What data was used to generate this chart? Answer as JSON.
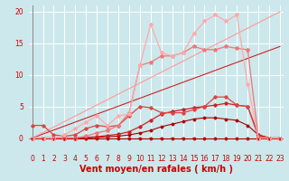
{
  "background_color": "#cce8ec",
  "grid_color": "#ffffff",
  "xlabel": "Vent moyen/en rafales ( km/h )",
  "xlabel_color": "#cc0000",
  "xlabel_fontsize": 7,
  "xticks": [
    0,
    1,
    2,
    3,
    4,
    5,
    6,
    7,
    8,
    9,
    10,
    11,
    12,
    13,
    14,
    15,
    16,
    17,
    18,
    19,
    20,
    21,
    22,
    23
  ],
  "yticks": [
    0,
    5,
    10,
    15,
    20
  ],
  "xlim": [
    -0.3,
    23.3
  ],
  "ylim": [
    -0.5,
    21
  ],
  "lines": [
    {
      "x": [
        0,
        23
      ],
      "y": [
        0,
        14.5
      ],
      "color": "#cc2222",
      "linewidth": 0.8,
      "marker": null,
      "markersize": 0
    },
    {
      "x": [
        0,
        23
      ],
      "y": [
        0,
        20
      ],
      "color": "#ff9999",
      "linewidth": 0.8,
      "marker": null,
      "markersize": 0
    },
    {
      "x": [
        0,
        1,
        2,
        3,
        4,
        5,
        6,
        7,
        8,
        9,
        10,
        11,
        12,
        13,
        14,
        15,
        16,
        17,
        18,
        19,
        20,
        21,
        22,
        23
      ],
      "y": [
        0,
        0,
        0,
        0,
        0,
        0,
        0,
        0,
        0,
        0,
        0,
        0,
        0,
        0,
        0,
        0,
        0,
        0,
        0,
        0,
        0,
        0,
        0,
        0
      ],
      "color": "#aa0000",
      "linewidth": 0.8,
      "marker": "D",
      "markersize": 1.5
    },
    {
      "x": [
        0,
        1,
        2,
        3,
        4,
        5,
        6,
        7,
        8,
        9,
        10,
        11,
        12,
        13,
        14,
        15,
        16,
        17,
        18,
        19,
        20,
        21,
        22,
        23
      ],
      "y": [
        0,
        0,
        0,
        0,
        0,
        0,
        0.1,
        0.2,
        0.3,
        0.5,
        0.8,
        1.2,
        1.8,
        2.2,
        2.6,
        3.0,
        3.2,
        3.2,
        3.0,
        2.8,
        2.0,
        0.5,
        0,
        0
      ],
      "color": "#aa0000",
      "linewidth": 0.8,
      "marker": "D",
      "markersize": 1.5
    },
    {
      "x": [
        0,
        1,
        2,
        3,
        4,
        5,
        6,
        7,
        8,
        9,
        10,
        11,
        12,
        13,
        14,
        15,
        16,
        17,
        18,
        19,
        20,
        21,
        22,
        23
      ],
      "y": [
        0,
        0,
        0,
        0,
        0,
        0.1,
        0.2,
        0.4,
        0.6,
        1.0,
        1.8,
        2.8,
        3.8,
        4.2,
        4.5,
        4.8,
        5.0,
        5.2,
        5.5,
        5.2,
        5.0,
        0.5,
        0,
        0
      ],
      "color": "#cc2222",
      "linewidth": 0.9,
      "marker": "D",
      "markersize": 1.8
    },
    {
      "x": [
        0,
        1,
        2,
        3,
        4,
        5,
        6,
        7,
        8,
        9,
        10,
        11,
        12,
        13,
        14,
        15,
        16,
        17,
        18,
        19,
        20,
        21,
        22,
        23
      ],
      "y": [
        2,
        2,
        0.5,
        0.3,
        0.5,
        1.5,
        2.0,
        1.8,
        2.0,
        3.5,
        5.0,
        4.8,
        4.0,
        4.0,
        4.0,
        4.5,
        5.0,
        6.5,
        6.5,
        5.2,
        5.0,
        0.2,
        0,
        0
      ],
      "color": "#dd4444",
      "linewidth": 0.9,
      "marker": "D",
      "markersize": 1.8
    },
    {
      "x": [
        0,
        1,
        2,
        3,
        4,
        5,
        6,
        7,
        8,
        9,
        10,
        11,
        12,
        13,
        14,
        15,
        16,
        17,
        18,
        19,
        20,
        21,
        22,
        23
      ],
      "y": [
        0,
        0,
        0,
        0,
        0,
        0.3,
        0.8,
        1.2,
        2.0,
        4.0,
        11.5,
        12.0,
        13.0,
        13.0,
        13.5,
        14.5,
        14.0,
        14.0,
        14.5,
        14.2,
        14.0,
        0,
        0,
        0
      ],
      "color": "#ee7777",
      "linewidth": 0.9,
      "marker": "*",
      "markersize": 3
    },
    {
      "x": [
        0,
        1,
        2,
        3,
        4,
        5,
        6,
        7,
        8,
        9,
        10,
        11,
        12,
        13,
        14,
        15,
        16,
        17,
        18,
        19,
        20,
        21,
        22,
        23
      ],
      "y": [
        0,
        0,
        0,
        0.5,
        1.5,
        2.5,
        3.5,
        2.0,
        3.5,
        3.8,
        11.5,
        18.0,
        13.5,
        13.0,
        13.5,
        16.5,
        18.5,
        19.5,
        18.5,
        19.5,
        8.5,
        0,
        0,
        0
      ],
      "color": "#ffaaaa",
      "linewidth": 0.9,
      "marker": "*",
      "markersize": 3
    }
  ],
  "arrow_color": "#cc0000",
  "tick_label_color": "#cc0000",
  "tick_fontsize": 5.5,
  "arrow_size": 3
}
